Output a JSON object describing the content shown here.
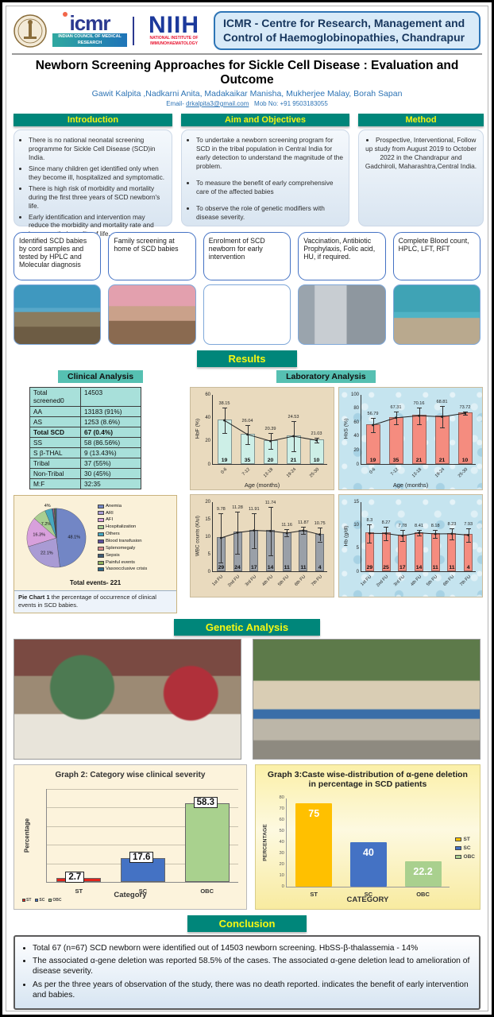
{
  "header": {
    "icmr_logo": {
      "name": "icmr",
      "sub": "INDIAN COUNCIL OF MEDICAL RESEARCH"
    },
    "niih_logo": {
      "name": "NIIH",
      "sub": "NATIONAL INSTITUTE OF IMMUNOHAEMATOLOGY"
    },
    "institute_box": "ICMR - Centre for Research, Management and Control of Haemoglobinopathies, Chandrapur"
  },
  "title": "Newborn Screening Approaches for Sickle Cell Disease : Evaluation and Outcome",
  "authors": "Gawit Kalpita ,Nadkarni Anita, Madakaikar Manisha, Mukherjee Malay, Borah Sapan",
  "contact": {
    "email_label": "Email- ",
    "email": "drkalpita3@gmail.com",
    "mobile": "Mob No: +91 9503183055"
  },
  "sections": {
    "introduction": {
      "heading": "Introduction",
      "bullets": [
        "There is no national neonatal screening programme for Sickle Cell Disease (SCD)in India.",
        "Since many children get identified only when they become ill, hospitalized and symptomatic.",
        "There is high risk of morbidity and mortality during the first three years of SCD newborn's life.",
        "Early identification and intervention may reduce the morbidity and mortality rate and improves their quality of life."
      ]
    },
    "aims": {
      "heading": "Aim and Objectives",
      "bullets": [
        "To undertake a newborn screening program for SCD in the tribal population in Central India for early detection to understand the magnitude of the problem.",
        "To measure the benefit of early comprehensive care of the affected babies",
        "To observe the role of genetic modifiers with disease severity."
      ]
    },
    "method": {
      "heading": "Method",
      "bullets": [
        "Prospective, Interventional, Follow up study from August 2019 to October 2022 in the Chandrapur and Gadchiroli, Maharashtra,Central India."
      ]
    }
  },
  "workflow_boxes": [
    "Identified SCD babies by cord samples and tested by HPLC and Molecular diagnosis",
    "Family screening at home of SCD babies",
    "Enrolment of SCD newborn for early intervention",
    "Vaccination, Antibiotic Prophylaxis, Folic acid, HU, if required.",
    "Complete Blood count, HPLC, LFT, RFT"
  ],
  "results": {
    "heading": "Results",
    "clinical_heading": "Clinical Analysis",
    "laboratory_heading": "Laboratory Analysis",
    "clinical_table": {
      "rows": [
        [
          "Total screened0",
          "14503"
        ],
        [
          "AA",
          "13183 (91%)"
        ],
        [
          "AS",
          "1253 (8.6%)"
        ],
        [
          "Total SCD",
          "67 (0.4%)"
        ],
        [
          "SS",
          "58 (86.56%)"
        ],
        [
          "S β-THAL",
          "9 (13.43%)"
        ],
        [
          "Tribal",
          "37 (55%)"
        ],
        [
          "Non-Tribal",
          "30 (45%)"
        ],
        [
          "M:F",
          "32:35"
        ]
      ]
    }
  },
  "genetic_heading": "Genetic Analysis",
  "conclusion": {
    "heading": "Conclusion",
    "bullets": [
      "Total 67 (n=67) SCD newborn were identified out of 14503 newborn screening. HbSS-β-thalassemia - 14%",
      "The associated α-gene deletion was reported 58.5% of the cases. The associated α-gene deletion lead to amelioration of disease severity.",
      "As per the three years of observation of the study, there was no death reported. indicates the benefit of early intervention and babies."
    ]
  },
  "chart_data": [
    {
      "id": "hbf_by_age",
      "type": "bar",
      "categories": [
        "0-6",
        "7-12",
        "13-18",
        "19-24",
        "25-30"
      ],
      "values": [
        38.15,
        26.04,
        20.39,
        24.53,
        21.03
      ],
      "value_labels": [
        "38.15",
        "26.04",
        "20.39",
        "24.53",
        "21.03"
      ],
      "errors": [
        11,
        8,
        7,
        13,
        2
      ],
      "n_labels": [
        "19",
        "35",
        "20",
        "21",
        "10"
      ],
      "ylabel": "HbF (%)",
      "xlabel": "Age (months)",
      "ylim": [
        0,
        60
      ],
      "yticks": [
        0,
        20,
        40,
        60
      ],
      "bar_color": "#CDEFE7",
      "line": true
    },
    {
      "id": "hbs_by_age",
      "type": "bar",
      "categories": [
        "0-6",
        "7-12",
        "13-18",
        "19-24",
        "25-30"
      ],
      "values": [
        56.79,
        67.31,
        70.16,
        68.81,
        73.72
      ],
      "value_labels": [
        "56.79",
        "67.31",
        "70.16",
        "68.81",
        "73.72"
      ],
      "errors": [
        10,
        9,
        12,
        15,
        2
      ],
      "n_labels": [
        "19",
        "35",
        "21",
        "21",
        "10"
      ],
      "ylabel": "HbS (%)",
      "xlabel": "Age (months)",
      "ylim": [
        0,
        100
      ],
      "yticks": [
        0,
        20,
        40,
        60,
        80,
        100
      ],
      "bar_color": "#F58C7F",
      "line": true
    },
    {
      "id": "wbc_by_followup",
      "type": "bar",
      "categories": [
        "1st FU",
        "2nd FU",
        "3rd FU",
        "4th FU",
        "5th FU",
        "6th FU",
        "7th FU"
      ],
      "values": [
        9.78,
        11.28,
        11.91,
        11.74,
        11.16,
        11.87,
        10.75
      ],
      "value_labels": [
        "9.78",
        "11.28",
        "11.91",
        "11.74",
        "11.16",
        "11.87",
        "10.75"
      ],
      "errors": [
        7,
        6,
        5,
        7,
        1,
        1,
        2
      ],
      "n_labels": [
        "29",
        "24",
        "17",
        "14",
        "11",
        "11",
        "4"
      ],
      "ylabel": "WBC counts (K/ul)",
      "xlabel": "",
      "ylim": [
        0,
        20
      ],
      "yticks": [
        0,
        5,
        10,
        15,
        20
      ],
      "bar_color": "#9AA0A8",
      "line": true
    },
    {
      "id": "hb_by_followup",
      "type": "bar",
      "categories": [
        "1st FU",
        "2nd FU",
        "3rd FU",
        "4th FU",
        "5th FU",
        "6th FU",
        "7th FU"
      ],
      "values": [
        8.3,
        8.27,
        7.78,
        8.41,
        8.18,
        8.23,
        7.93
      ],
      "value_labels": [
        "8.3",
        "8.27",
        "7.78",
        "8.41",
        "8.18",
        "8.23",
        "7.93"
      ],
      "errors": [
        2,
        1.5,
        1.2,
        0.6,
        0.9,
        1.2,
        1.5
      ],
      "n_labels": [
        "29",
        "25",
        "17",
        "14",
        "11",
        "11",
        "4"
      ],
      "ylabel": "Hb (g/dl)",
      "xlabel": "",
      "ylim": [
        0,
        15
      ],
      "yticks": [
        0,
        5,
        10,
        15
      ],
      "bar_color": "#F58C7F",
      "line": true
    },
    {
      "id": "clinical_events_pie",
      "type": "pie",
      "title": "Total events- 221",
      "labels": [
        "Anemia",
        "ARI",
        "AFI",
        "Hospitalization",
        "Others",
        "Blood transfusion",
        "Splenomegaly",
        "Sepsis",
        "Painful events",
        "Vasoocclusive crisis"
      ],
      "values": [
        48.1,
        22.1,
        16.3,
        7.2,
        4.0,
        0.5,
        0.5,
        0.5,
        0.4,
        0.4
      ],
      "slice_labels": [
        "48.1%",
        "22.1%",
        "16.3%",
        "7.2%",
        "4%",
        "",
        "",
        "",
        "",
        ""
      ],
      "colors": [
        "#7286C5",
        "#A99BD4",
        "#D8A0DC",
        "#A9CE91",
        "#46A8C0",
        "#5C4E9E",
        "#D98C8C",
        "#3E5C76",
        "#8FAF5A",
        "#2F6B8E"
      ],
      "caption_bold": "Pie Chart 1",
      "caption_rest": " the percentage of occurrence of clinical events in SCD babies."
    },
    {
      "id": "graph2_clinical_severity",
      "type": "bar",
      "title": "Graph 2: Category wise clinical severity",
      "categories": [
        "ST",
        "SC",
        "OBC"
      ],
      "values": [
        2.7,
        17.6,
        58.3
      ],
      "value_labels": [
        "2.7",
        "17.6",
        "58.3"
      ],
      "colors": [
        "#E2231A",
        "#4472C4",
        "#A9D18E"
      ],
      "ylabel": "Percentage",
      "xlabel": "Category",
      "ylim": [
        0,
        70
      ],
      "legend": [
        "ST",
        "SC",
        "OBC"
      ]
    },
    {
      "id": "graph3_alpha_gene_deletion",
      "type": "bar",
      "title": "Graph 3:Caste wise-distribution of α-gene deletion in percentage in SCD patients",
      "categories": [
        "ST",
        "SC",
        "OBC"
      ],
      "values": [
        75,
        40,
        22.2
      ],
      "value_labels": [
        "75",
        "40",
        "22.2"
      ],
      "colors": [
        "#FFC000",
        "#4472C4",
        "#A9D08E"
      ],
      "ylabel": "PERCENTAGE",
      "xlabel": "CATEGORY",
      "ylim": [
        0,
        80
      ],
      "yticks": [
        0,
        10,
        20,
        30,
        40,
        50,
        60,
        70,
        80
      ],
      "legend": [
        "ST",
        "SC",
        "OBC"
      ]
    }
  ]
}
